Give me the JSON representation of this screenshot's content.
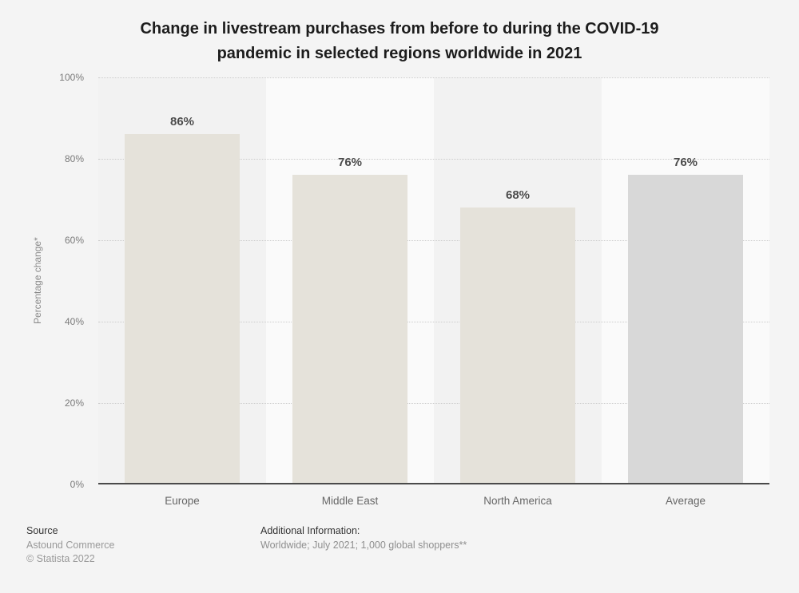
{
  "title": {
    "line1": "Change in livestream purchases from before to during the COVID-19",
    "line2": "pandemic in selected regions worldwide in 2021"
  },
  "chart_data": {
    "type": "bar",
    "title": "Change in livestream purchases from before to during the COVID-19 pandemic in selected regions worldwide in 2021",
    "categories": [
      "Europe",
      "Middle East",
      "North America",
      "Average"
    ],
    "values": [
      86,
      76,
      68,
      76
    ],
    "value_labels": [
      "86%",
      "76%",
      "68%",
      "76%"
    ],
    "bar_colors": [
      "#e5e2da",
      "#e5e2da",
      "#e5e2da",
      "#d8d8d8"
    ],
    "xlabel": "",
    "ylabel": "Percentage change*",
    "ylim": [
      0,
      100
    ],
    "yticks": [
      {
        "value": 0,
        "label": "0%"
      },
      {
        "value": 20,
        "label": "20%"
      },
      {
        "value": 40,
        "label": "40%"
      },
      {
        "value": 60,
        "label": "60%"
      },
      {
        "value": 80,
        "label": "80%"
      },
      {
        "value": 100,
        "label": "100%"
      }
    ],
    "grid": "horizontal dotted",
    "legend": "none",
    "colors": {
      "background": "#f4f4f4",
      "band_dark": "#f2f2f2",
      "band_light": "#fafafa",
      "gridline": "#cccccc",
      "axis_line": "#4a4a4a"
    }
  },
  "footer": {
    "source_label": "Source",
    "source_name": "Astound Commerce",
    "copyright": "© Statista 2022",
    "additional_label": "Additional Information:",
    "additional_text": "Worldwide; July 2021; 1,000 global shoppers**"
  }
}
